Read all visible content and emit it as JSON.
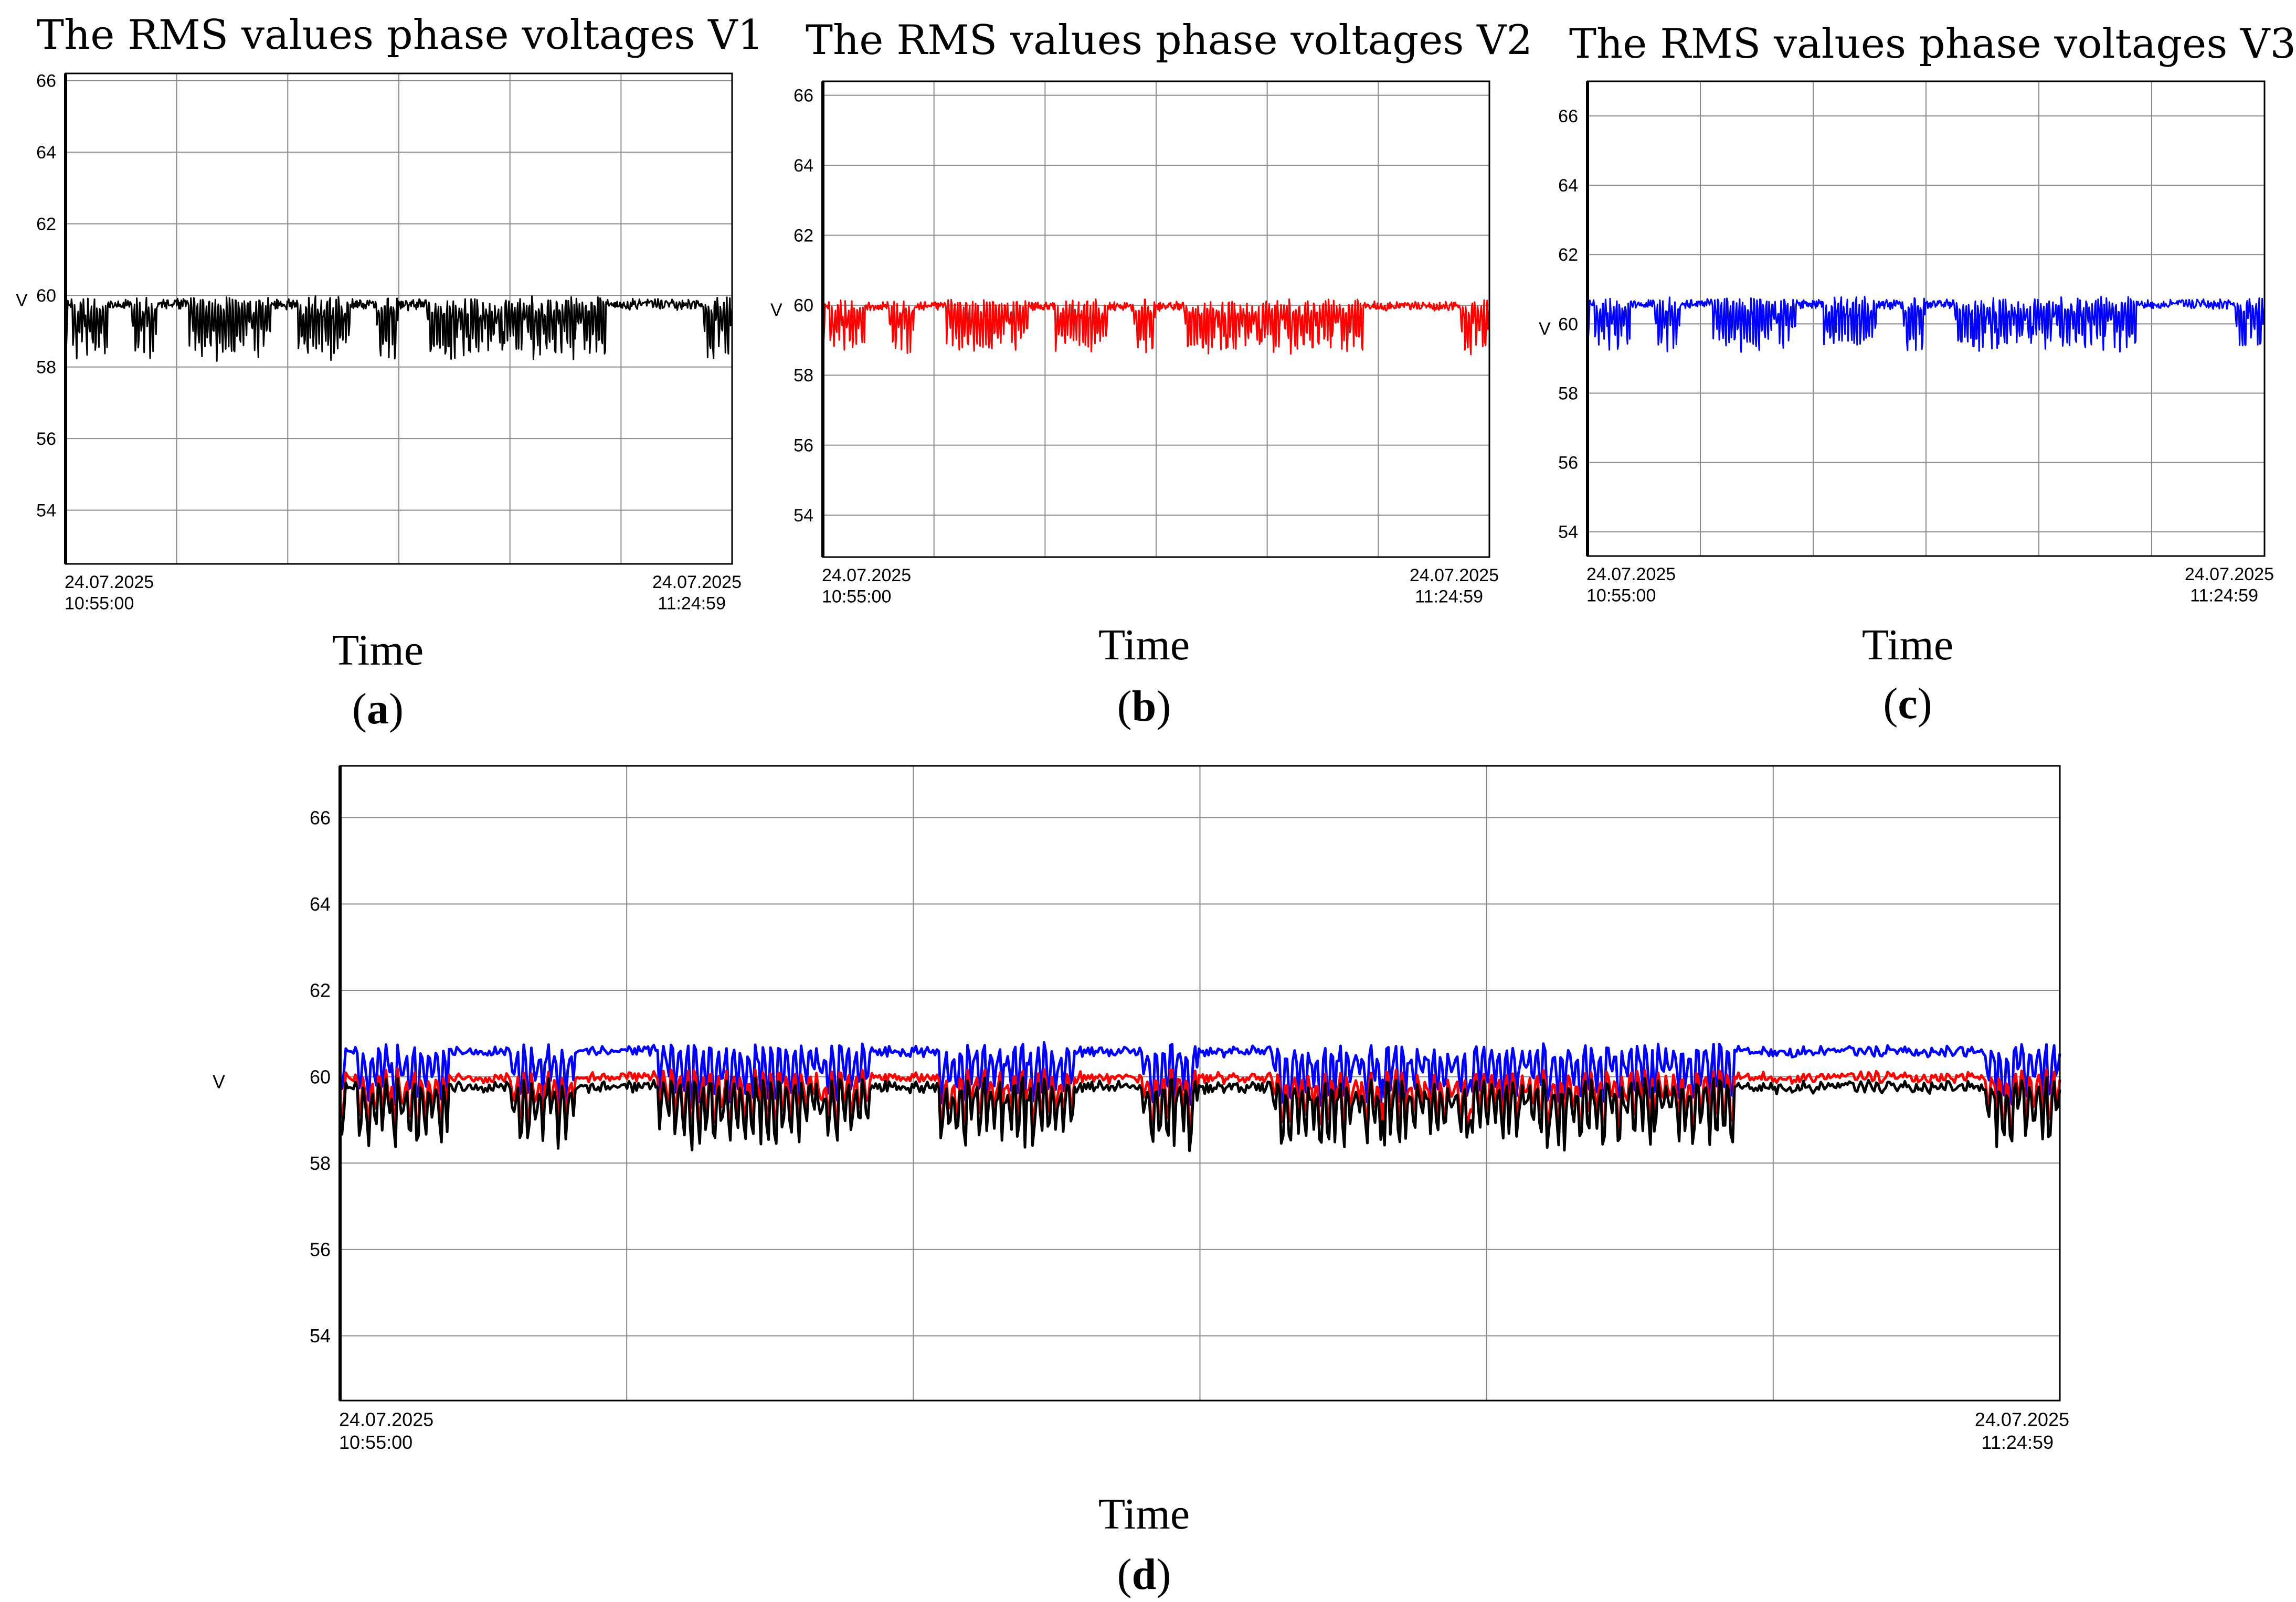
{
  "chart_data": [
    {
      "type": "line",
      "panel": "a",
      "title": "The RMS values phase voltages V1",
      "xlabel": "Time",
      "ylabel": "V",
      "x_start": "24.07.2025 10:55:00",
      "x_end": "24.07.2025 11:24:59",
      "x_tick_labels": [
        {
          "date": "24.07.2025",
          "time": "10:55:00"
        },
        {
          "date": "24.07.2025",
          "time": "11:24:59"
        }
      ],
      "y_ticks": [
        54,
        56,
        58,
        60,
        62,
        64,
        66
      ],
      "ylim": [
        52.5,
        66.2
      ],
      "grid": true,
      "series": [
        {
          "color": "#000000",
          "base": 60.0,
          "dip_min": 58.2
        }
      ]
    },
    {
      "type": "line",
      "panel": "b",
      "title": "The RMS values phase voltages V2",
      "xlabel": "Time",
      "ylabel": "V",
      "x_start": "24.07.2025 10:55:00",
      "x_end": "24.07.2025 11:24:59",
      "x_tick_labels": [
        {
          "date": "24.07.2025",
          "time": "10:55:00"
        },
        {
          "date": "24.07.2025",
          "time": "11:24:59"
        }
      ],
      "y_ticks": [
        54,
        56,
        58,
        60,
        62,
        64,
        66
      ],
      "ylim": [
        52.8,
        66.4
      ],
      "grid": true,
      "series": [
        {
          "color": "#ff0000",
          "base": 60.2,
          "dip_min": 58.6
        }
      ]
    },
    {
      "type": "line",
      "panel": "c",
      "title": "The RMS values phase voltages V3",
      "xlabel": "Time",
      "ylabel": "V",
      "x_start": "24.07.2025 10:55:00",
      "x_end": "24.07.2025 11:24:59",
      "x_tick_labels": [
        {
          "date": "24.07.2025",
          "time": "10:55:00"
        },
        {
          "date": "24.07.2025",
          "time": "11:24:59"
        }
      ],
      "y_ticks": [
        54,
        56,
        58,
        60,
        62,
        64,
        66
      ],
      "ylim": [
        53.3,
        67.0
      ],
      "grid": true,
      "series": [
        {
          "color": "#0000ff",
          "base": 60.8,
          "dip_min": 59.2
        }
      ]
    },
    {
      "type": "line",
      "panel": "d",
      "title": "",
      "xlabel": "Time",
      "ylabel": "V",
      "x_start": "24.07.2025 10:55:00",
      "x_end": "24.07.2025 11:24:59",
      "x_tick_labels": [
        {
          "date": "24.07.2025",
          "time": "10:55:00"
        },
        {
          "date": "24.07.2025",
          "time": "11:24:59"
        }
      ],
      "y_ticks": [
        54,
        56,
        58,
        60,
        62,
        64,
        66
      ],
      "ylim": [
        52.5,
        67.2
      ],
      "grid": true,
      "series": [
        {
          "color": "#0000ff",
          "base": 60.8,
          "dip_min": 59.3
        },
        {
          "color": "#ff0000",
          "base": 60.2,
          "dip_min": 58.7
        },
        {
          "color": "#000000",
          "base": 60.0,
          "dip_min": 58.3
        }
      ]
    }
  ],
  "panel_letters": [
    "a",
    "b",
    "c",
    "d"
  ]
}
